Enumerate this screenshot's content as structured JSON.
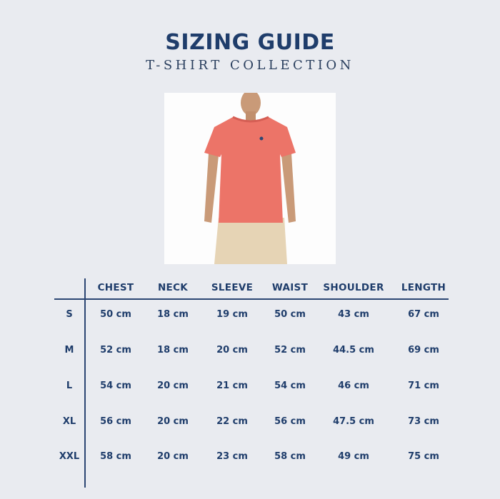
{
  "header": {
    "title": "SIZING GUIDE",
    "subtitle": "T-SHIRT COLLECTION"
  },
  "image": {
    "alt_subject": "model-wearing-coral-tshirt",
    "shirt_color": "#ec7468",
    "pants_color": "#e6d4b5"
  },
  "colors": {
    "accent": "#1f3d6b",
    "background": "#e9ebf0"
  },
  "table": {
    "columns": [
      "CHEST",
      "NECK",
      "SLEEVE",
      "WAIST",
      "SHOULDER",
      "LENGTH"
    ],
    "rows": [
      {
        "size": "S",
        "values": [
          "50 cm",
          "18 cm",
          "19 cm",
          "50 cm",
          "43 cm",
          "67 cm"
        ]
      },
      {
        "size": "M",
        "values": [
          "52 cm",
          "18 cm",
          "20 cm",
          "52 cm",
          "44.5 cm",
          "69 cm"
        ]
      },
      {
        "size": "L",
        "values": [
          "54 cm",
          "20 cm",
          "21 cm",
          "54 cm",
          "46 cm",
          "71 cm"
        ]
      },
      {
        "size": "XL",
        "values": [
          "56 cm",
          "20 cm",
          "22 cm",
          "56 cm",
          "47.5 cm",
          "73 cm"
        ]
      },
      {
        "size": "XXL",
        "values": [
          "58 cm",
          "20 cm",
          "23 cm",
          "58 cm",
          "49 cm",
          "75 cm"
        ]
      }
    ]
  }
}
